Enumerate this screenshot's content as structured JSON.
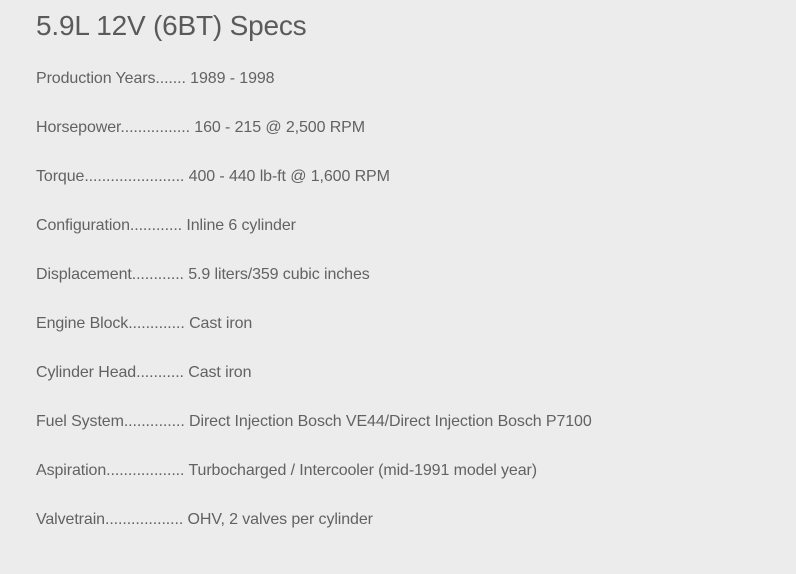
{
  "title": "5.9L 12V (6BT) Specs",
  "specs": [
    {
      "label": "Production Years",
      "dots": ".......",
      "value": "1989 - 1998"
    },
    {
      "label": "Horsepower",
      "dots": "................",
      "value": "160 - 215 @ 2,500 RPM"
    },
    {
      "label": "Torque",
      "dots": ".......................",
      "value": "400 - 440 lb-ft @ 1,600 RPM"
    },
    {
      "label": "Configuration",
      "dots": "............",
      "value": "Inline 6 cylinder"
    },
    {
      "label": "Displacement",
      "dots": "............",
      "value": "5.9 liters/359 cubic inches"
    },
    {
      "label": "Engine Block",
      "dots": ".............",
      "value": "Cast iron"
    },
    {
      "label": "Cylinder Head",
      "dots": "...........",
      "value": "Cast iron"
    },
    {
      "label": "Fuel System",
      "dots": "..............",
      "value": "Direct Injection Bosch VE44/Direct Injection Bosch P7100"
    },
    {
      "label": "Aspiration",
      "dots": "..................",
      "value": "Turbocharged / Intercooler (mid-1991 model year)"
    },
    {
      "label": "Valvetrain",
      "dots": "..................",
      "value": "OHV, 2 valves per cylinder"
    }
  ]
}
